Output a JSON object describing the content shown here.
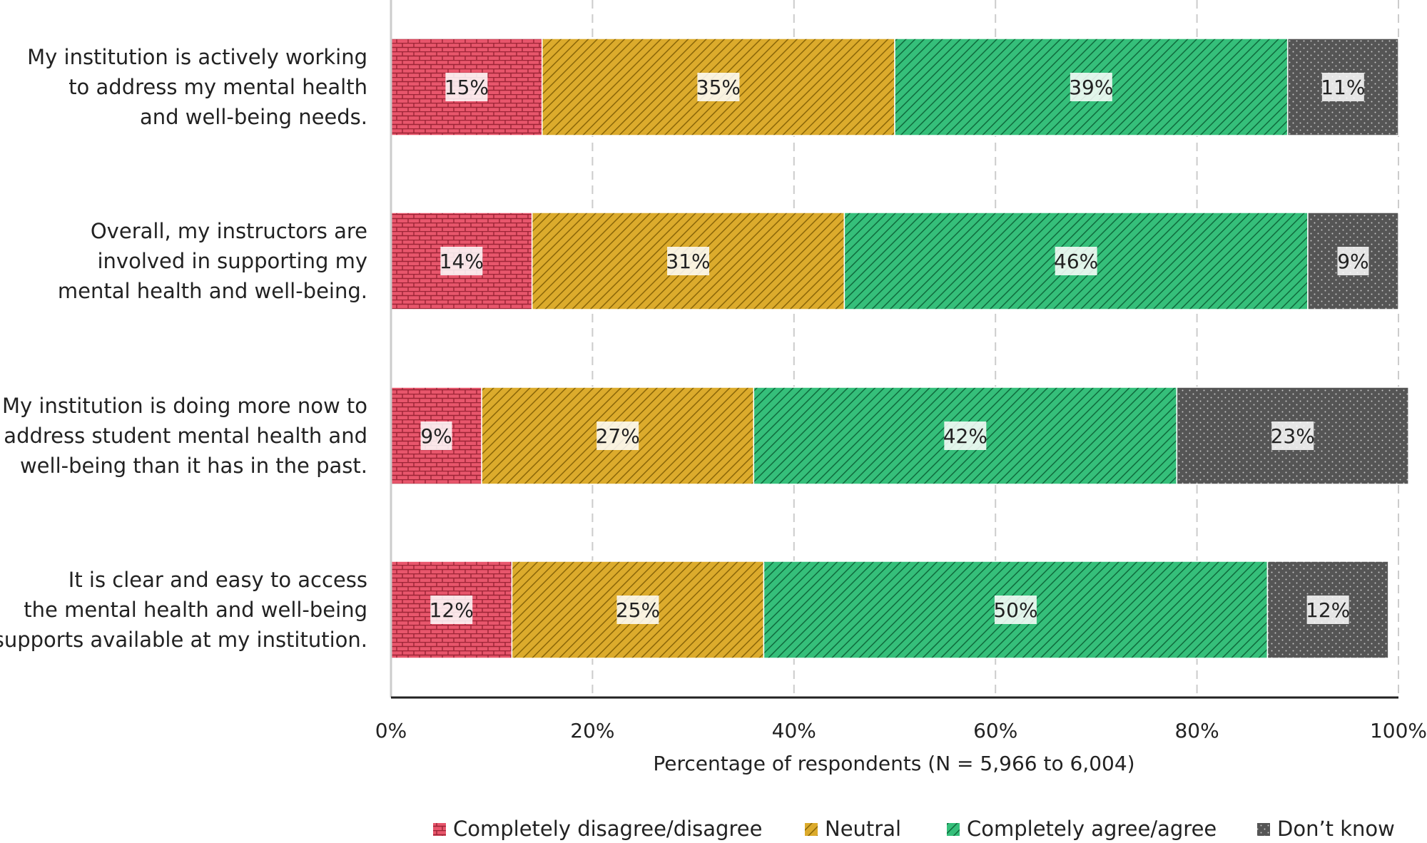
{
  "chart_data": {
    "type": "bar",
    "orientation": "horizontal",
    "stacked": true,
    "categories": [
      [
        "My institution is actively working",
        "to address my mental health",
        "and well-being needs."
      ],
      [
        "Overall, my instructors are",
        "involved in supporting my",
        "mental health and well-being."
      ],
      [
        "My institution is doing more now to",
        "address student mental health and",
        "well-being than it has in the past."
      ],
      [
        "It is clear and easy to access",
        "the mental health and well-being",
        "supports available at my institution."
      ]
    ],
    "series": [
      {
        "name": "Completely disagree/disagree",
        "values": [
          15,
          14,
          9,
          12
        ],
        "labels": [
          "15%",
          "14%",
          "9%",
          "12%"
        ],
        "color": "#e8566c",
        "pattern": "brick"
      },
      {
        "name": "Neutral",
        "values": [
          35,
          31,
          27,
          25
        ],
        "labels": [
          "35%",
          "31%",
          "27%",
          "25%"
        ],
        "color": "#d9a41e",
        "pattern": "hatch"
      },
      {
        "name": "Completely agree/agree",
        "values": [
          39,
          46,
          42,
          50
        ],
        "labels": [
          "39%",
          "46%",
          "42%",
          "50%"
        ],
        "color": "#2db873",
        "pattern": "hatch"
      },
      {
        "name": "Don’t know",
        "values": [
          11,
          9,
          23,
          12
        ],
        "labels": [
          "11%",
          "9%",
          "23%",
          "12%"
        ],
        "color": "#555555",
        "pattern": "dots"
      }
    ],
    "xlabel": "Percentage of respondents (N = 5,966 to 6,004)",
    "xlim": [
      0,
      100
    ],
    "xticks": [
      "0%",
      "20%",
      "40%",
      "60%",
      "80%",
      "100%"
    ],
    "grid": "vertical dashed",
    "legend_position": "bottom"
  }
}
